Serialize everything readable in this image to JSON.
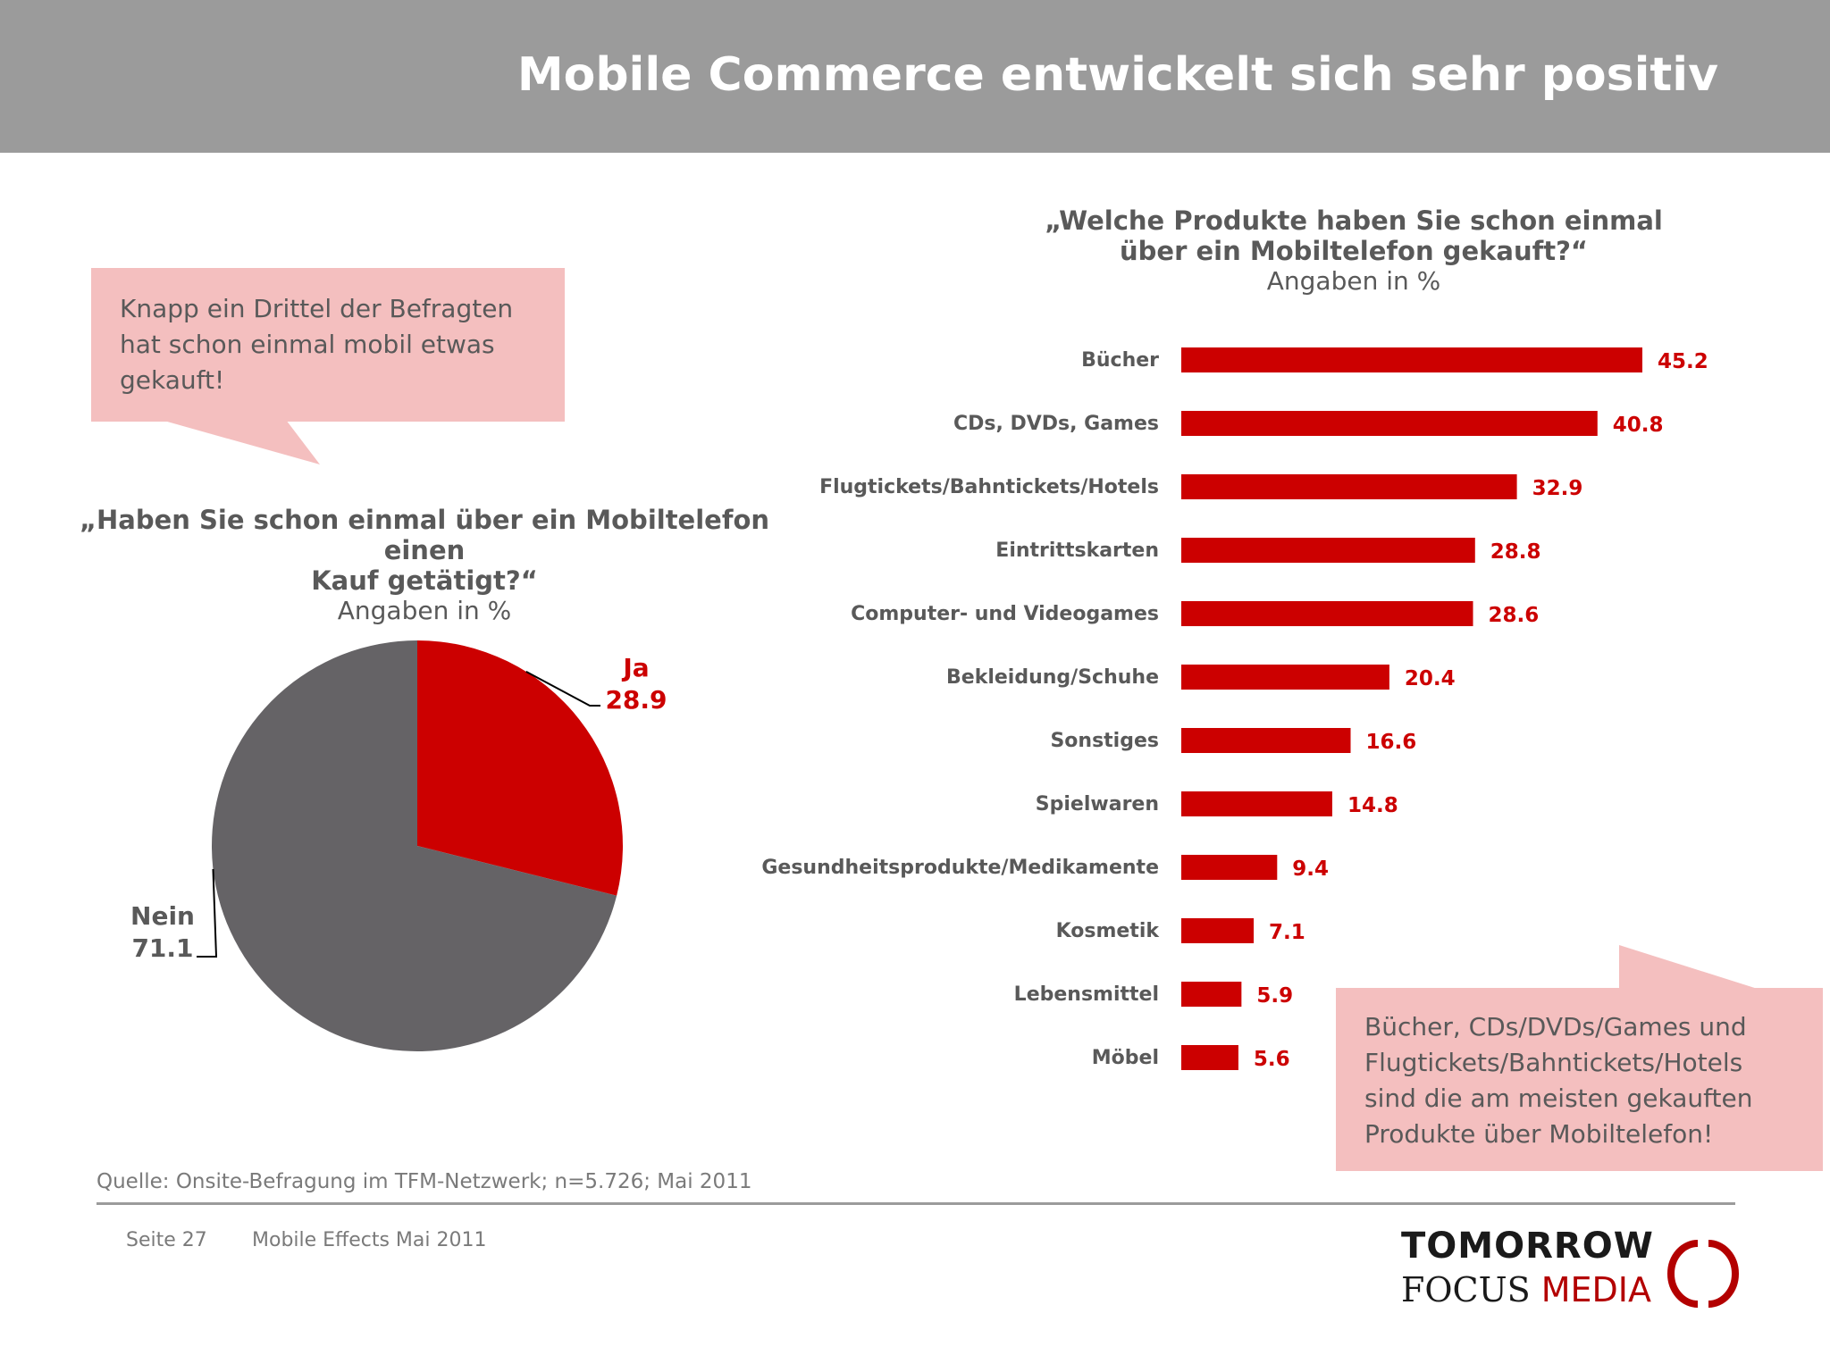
{
  "header": {
    "title": "Mobile Commerce entwickelt sich sehr positiv"
  },
  "callouts": {
    "left": [
      "Knapp ein Drittel der Befragten",
      "hat schon einmal mobil etwas",
      "gekauft!"
    ],
    "right": [
      "Bücher, CDs/DVDs/Games und",
      "Flugtickets/Bahntickets/Hotels",
      "sind die am meisten gekauften",
      "Produkte über Mobiltelefon!"
    ]
  },
  "pie_question": {
    "line1": "„Haben Sie schon einmal über ein Mobiltelefon einen",
    "line2": "Kauf getätigt?“",
    "unit": "Angaben in %"
  },
  "bar_question": {
    "line1": "„Welche Produkte haben Sie schon einmal",
    "line2": "über ein Mobiltelefon gekauft?“",
    "unit": "Angaben in %"
  },
  "colors": {
    "red": "#cc0000",
    "gray": "#656366",
    "header": "#9b9b9b",
    "callout": "#f4bfbf"
  },
  "chart_data": [
    {
      "type": "pie",
      "categories": [
        "Ja",
        "Nein"
      ],
      "values": [
        28.9,
        71.1
      ],
      "colors": [
        "#cc0000",
        "#656366"
      ]
    },
    {
      "type": "bar",
      "orientation": "horizontal",
      "categories": [
        "Bücher",
        "CDs, DVDs, Games",
        "Flugtickets/Bahntickets/Hotels",
        "Eintrittskarten",
        "Computer- und Videogames",
        "Bekleidung/Schuhe",
        "Sonstiges",
        "Spielwaren",
        "Gesundheitsprodukte/Medikamente",
        "Kosmetik",
        "Lebensmittel",
        "Möbel"
      ],
      "values": [
        45.2,
        40.8,
        32.9,
        28.8,
        28.6,
        20.4,
        16.6,
        14.8,
        9.4,
        7.1,
        5.9,
        5.6
      ],
      "color": "#cc0000"
    }
  ],
  "source": "Quelle: Onsite-Befragung im TFM-Netzwerk; n=5.726; Mai 2011",
  "footer": {
    "page": "Seite 27",
    "doc": "Mobile Effects Mai 2011"
  },
  "logo": {
    "line1": "TOMORROW",
    "line2a": "FOCUS",
    "line2b": "MEDIA"
  }
}
